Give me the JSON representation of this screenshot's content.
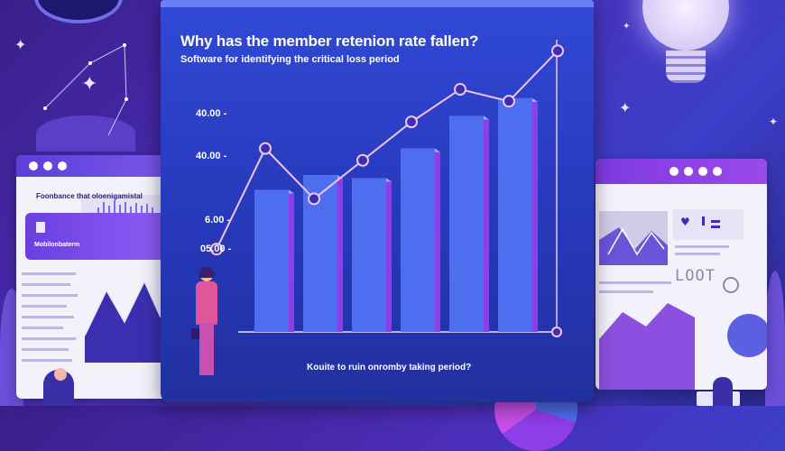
{
  "chart": {
    "title": "Why has the member retenion rate fallen?",
    "subtitle": "Software for identifying the critical loss period",
    "caption": "Kouite to ruin onromby taking period?",
    "y_ticks": [
      "40.00 -",
      "40.00 -",
      "6.00 -",
      "05.00 -"
    ]
  },
  "chart_data": {
    "type": "bar",
    "bar_values": [
      48,
      53,
      52,
      62,
      73,
      79
    ],
    "line_values": [
      28,
      62,
      45,
      58,
      71,
      82,
      78,
      95
    ],
    "colors": {
      "bar": "#4e6ef0",
      "line": "#f2c4f0",
      "accent": "#8e3ee8"
    }
  },
  "left_window": {
    "heading": "Foonbance that oloenigamistal",
    "badge_text": "Mobilonbaterm"
  },
  "right_window": {
    "logo_text": "LOOT"
  },
  "colors": {
    "background": "#4b2db8",
    "panel": "#2f44d0",
    "accent_purple": "#8d5cf5"
  }
}
